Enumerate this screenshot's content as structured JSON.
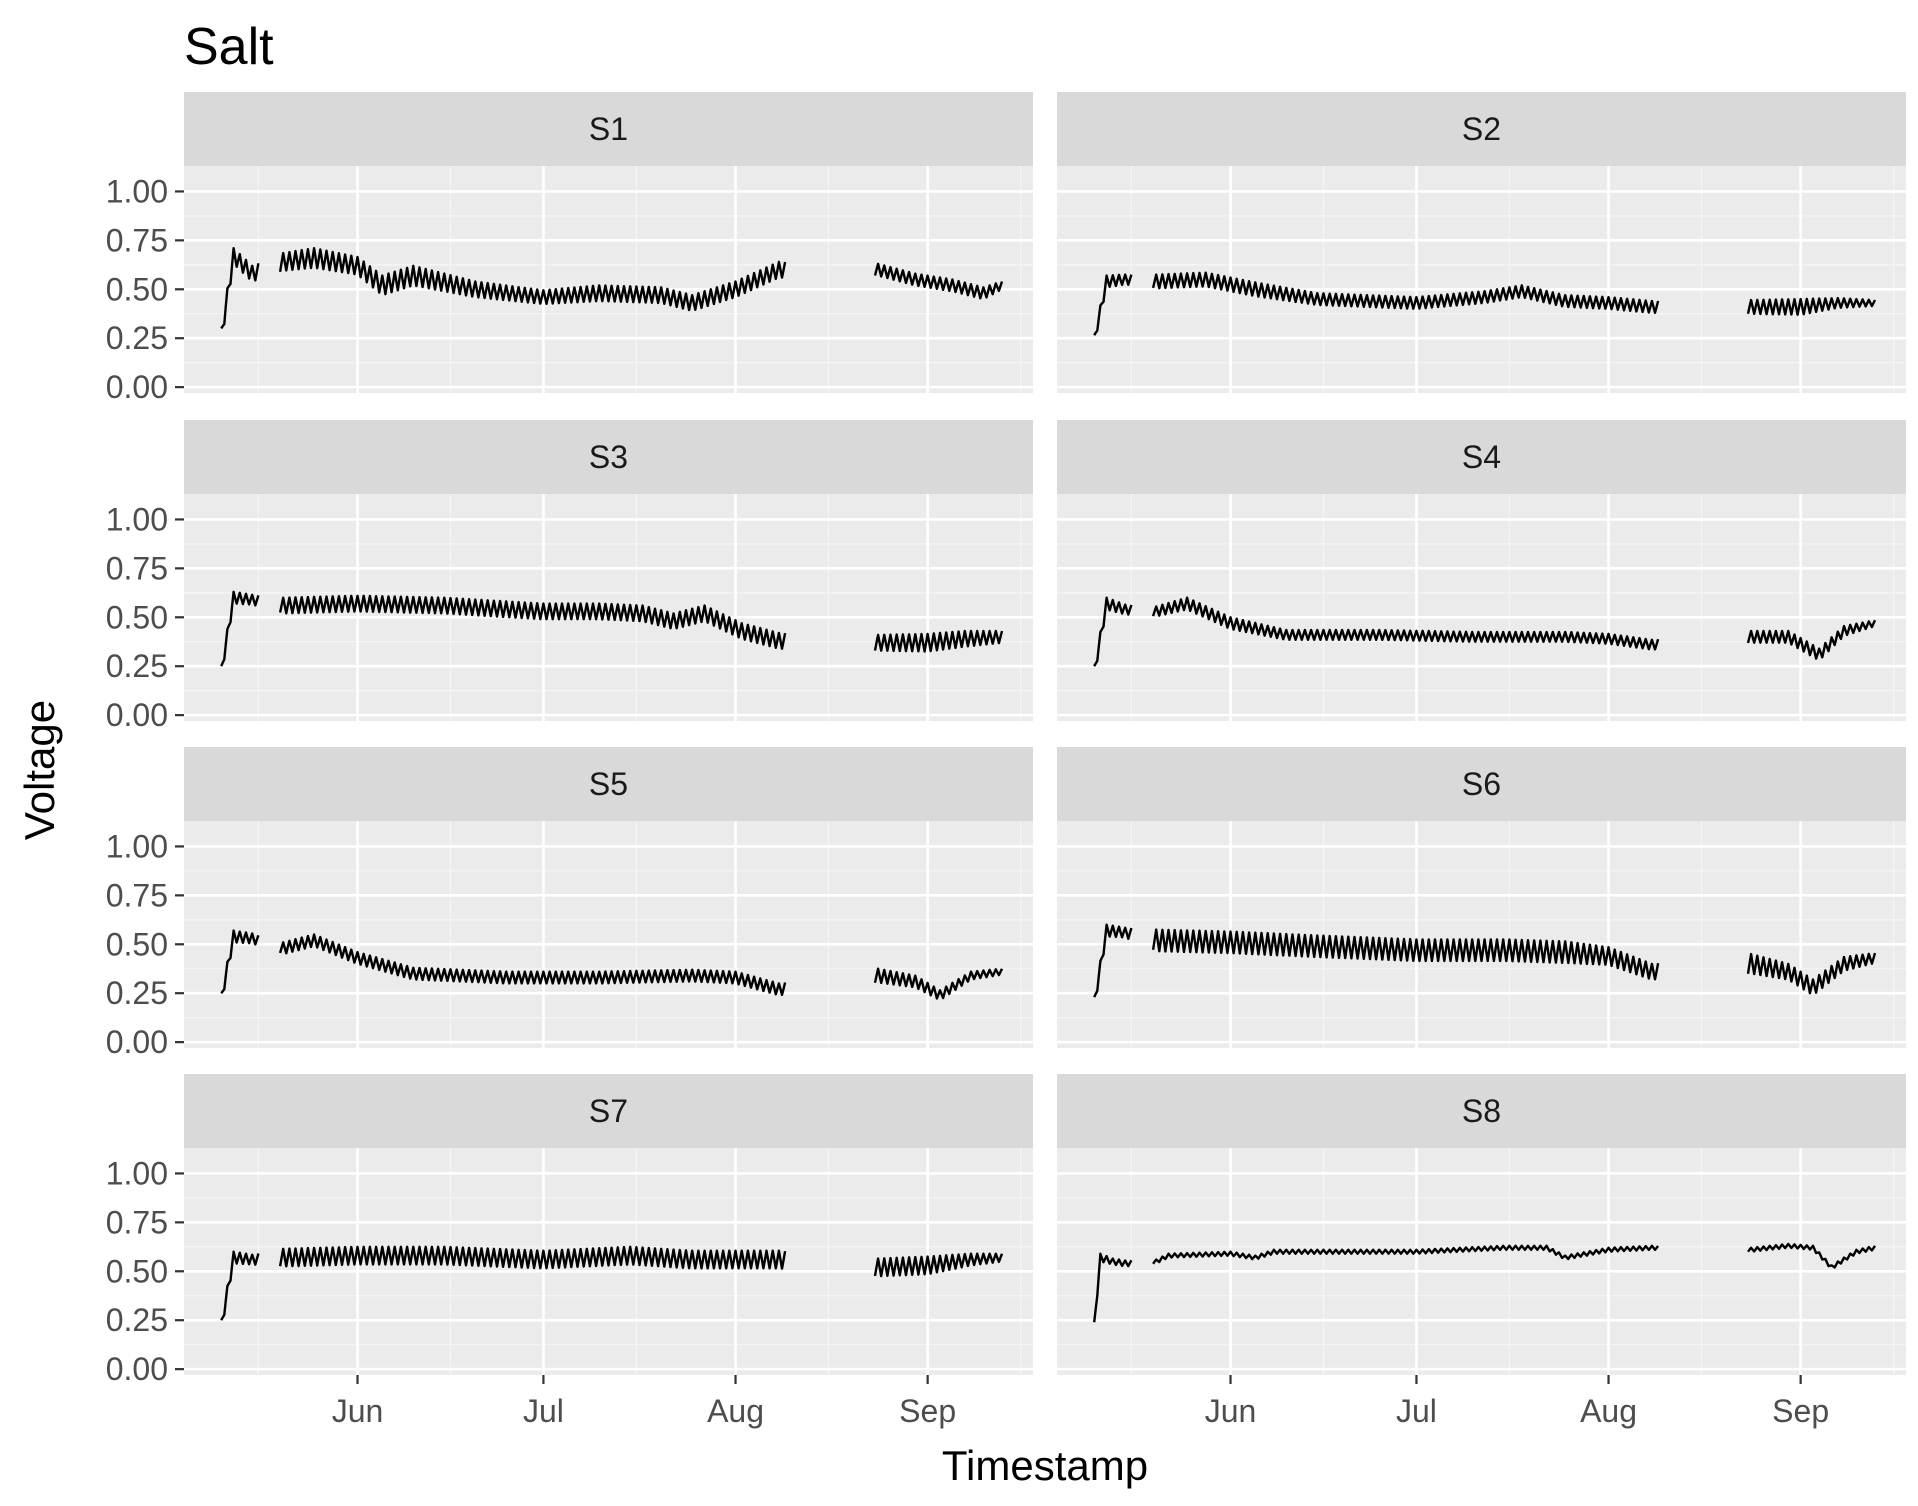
{
  "chart_data": {
    "type": "line",
    "title": "Salt",
    "xlabel": "Timestamp",
    "ylabel": "Voltage",
    "ylim": [
      0,
      1
    ],
    "xlim": [
      "2023-05-04",
      "2023-09-18"
    ],
    "y_ticks": [
      "0.00",
      "0.25",
      "0.50",
      "0.75",
      "1.00"
    ],
    "x_ticks": [
      {
        "label": "Jun",
        "date": "2023-06-01"
      },
      {
        "label": "Jul",
        "date": "2023-07-01"
      },
      {
        "label": "Aug",
        "date": "2023-08-01"
      },
      {
        "label": "Sep",
        "date": "2023-09-01"
      }
    ],
    "grid": true,
    "legend": "none",
    "line_color": "#000000",
    "panel_background": "#ebebeb",
    "strip_background": "#d9d9d9",
    "facets": [
      {
        "name": "S1",
        "gaps": [
          "2023-05-16",
          "2023-08-09"
        ],
        "x": [
          "2023-05-10",
          "2023-05-12",
          "2023-05-15",
          "2023-05-20",
          "2023-05-25",
          "2023-06-01",
          "2023-06-05",
          "2023-06-10",
          "2023-06-20",
          "2023-07-01",
          "2023-07-10",
          "2023-07-20",
          "2023-07-25",
          "2023-08-01",
          "2023-08-08",
          "2023-08-24",
          "2023-08-30",
          "2023-09-05",
          "2023-09-10",
          "2023-09-13"
        ],
        "y": [
          0.26,
          0.67,
          0.58,
          0.64,
          0.66,
          0.62,
          0.52,
          0.57,
          0.5,
          0.46,
          0.48,
          0.47,
          0.43,
          0.5,
          0.6,
          0.6,
          0.55,
          0.52,
          0.48,
          0.52
        ],
        "range": [
          0.08,
          0.08,
          0.08,
          0.09,
          0.1,
          0.09,
          0.1,
          0.1,
          0.08,
          0.07,
          0.08,
          0.08,
          0.08,
          0.08,
          0.08,
          0.06,
          0.06,
          0.06,
          0.06,
          0.04
        ]
      },
      {
        "name": "S2",
        "gaps": [
          "2023-05-16",
          "2023-08-09"
        ],
        "x": [
          "2023-05-10",
          "2023-05-12",
          "2023-05-15",
          "2023-05-20",
          "2023-05-28",
          "2023-06-05",
          "2023-06-15",
          "2023-07-01",
          "2023-07-12",
          "2023-07-18",
          "2023-07-25",
          "2023-08-01",
          "2023-08-08",
          "2023-08-24",
          "2023-09-01",
          "2023-09-07",
          "2023-09-13"
        ],
        "y": [
          0.24,
          0.54,
          0.55,
          0.54,
          0.55,
          0.5,
          0.45,
          0.43,
          0.46,
          0.49,
          0.44,
          0.43,
          0.41,
          0.41,
          0.41,
          0.43,
          0.43
        ],
        "range": [
          0.05,
          0.06,
          0.05,
          0.07,
          0.07,
          0.07,
          0.06,
          0.06,
          0.06,
          0.06,
          0.06,
          0.06,
          0.06,
          0.07,
          0.08,
          0.05,
          0.03
        ]
      },
      {
        "name": "S3",
        "gaps": [
          "2023-05-16",
          "2023-08-09"
        ],
        "x": [
          "2023-05-10",
          "2023-05-12",
          "2023-05-15",
          "2023-05-20",
          "2023-06-01",
          "2023-06-15",
          "2023-07-01",
          "2023-07-10",
          "2023-07-17",
          "2023-07-22",
          "2023-07-27",
          "2023-08-02",
          "2023-08-08",
          "2023-08-24",
          "2023-09-01",
          "2023-09-07",
          "2023-09-13"
        ],
        "y": [
          0.22,
          0.6,
          0.59,
          0.56,
          0.57,
          0.56,
          0.53,
          0.53,
          0.52,
          0.48,
          0.52,
          0.43,
          0.38,
          0.37,
          0.37,
          0.39,
          0.4
        ],
        "range": [
          0.06,
          0.06,
          0.05,
          0.08,
          0.08,
          0.08,
          0.08,
          0.08,
          0.08,
          0.08,
          0.08,
          0.08,
          0.08,
          0.08,
          0.09,
          0.08,
          0.06
        ]
      },
      {
        "name": "S4",
        "gaps": [
          "2023-05-16",
          "2023-08-09"
        ],
        "x": [
          "2023-05-10",
          "2023-05-12",
          "2023-05-15",
          "2023-05-20",
          "2023-05-25",
          "2023-06-01",
          "2023-06-10",
          "2023-06-25",
          "2023-07-10",
          "2023-07-25",
          "2023-08-01",
          "2023-08-08",
          "2023-08-24",
          "2023-08-30",
          "2023-09-04",
          "2023-09-08",
          "2023-09-13"
        ],
        "y": [
          0.22,
          0.57,
          0.54,
          0.53,
          0.57,
          0.47,
          0.41,
          0.41,
          0.4,
          0.4,
          0.39,
          0.36,
          0.4,
          0.4,
          0.31,
          0.43,
          0.47
        ],
        "range": [
          0.06,
          0.06,
          0.05,
          0.05,
          0.06,
          0.06,
          0.05,
          0.05,
          0.05,
          0.05,
          0.05,
          0.05,
          0.06,
          0.06,
          0.06,
          0.05,
          0.03
        ]
      },
      {
        "name": "S5",
        "gaps": [
          "2023-05-16",
          "2023-08-09"
        ],
        "x": [
          "2023-05-10",
          "2023-05-12",
          "2023-05-15",
          "2023-05-20",
          "2023-05-25",
          "2023-06-01",
          "2023-06-10",
          "2023-06-25",
          "2023-07-10",
          "2023-07-25",
          "2023-08-01",
          "2023-08-08",
          "2023-08-24",
          "2023-08-30",
          "2023-09-03",
          "2023-09-08",
          "2023-09-13"
        ],
        "y": [
          0.22,
          0.54,
          0.53,
          0.48,
          0.52,
          0.43,
          0.35,
          0.33,
          0.33,
          0.34,
          0.33,
          0.27,
          0.34,
          0.31,
          0.24,
          0.34,
          0.36
        ],
        "range": [
          0.06,
          0.06,
          0.05,
          0.06,
          0.06,
          0.06,
          0.06,
          0.06,
          0.06,
          0.06,
          0.06,
          0.06,
          0.07,
          0.06,
          0.05,
          0.04,
          0.03
        ]
      },
      {
        "name": "S6",
        "gaps": [
          "2023-05-16",
          "2023-08-09"
        ],
        "x": [
          "2023-05-10",
          "2023-05-12",
          "2023-05-15",
          "2023-05-20",
          "2023-06-01",
          "2023-06-15",
          "2023-07-01",
          "2023-07-15",
          "2023-07-25",
          "2023-08-01",
          "2023-08-08",
          "2023-08-24",
          "2023-08-30",
          "2023-09-03",
          "2023-09-08",
          "2023-09-13"
        ],
        "y": [
          0.2,
          0.57,
          0.56,
          0.52,
          0.51,
          0.49,
          0.47,
          0.47,
          0.46,
          0.44,
          0.36,
          0.4,
          0.36,
          0.28,
          0.4,
          0.43
        ],
        "range": [
          0.06,
          0.06,
          0.05,
          0.11,
          0.11,
          0.11,
          0.11,
          0.11,
          0.11,
          0.09,
          0.08,
          0.1,
          0.08,
          0.08,
          0.07,
          0.05
        ]
      },
      {
        "name": "S7",
        "gaps": [
          "2023-05-16",
          "2023-08-09"
        ],
        "x": [
          "2023-05-10",
          "2023-05-12",
          "2023-05-15",
          "2023-05-20",
          "2023-06-01",
          "2023-06-15",
          "2023-07-01",
          "2023-07-15",
          "2023-07-25",
          "2023-08-01",
          "2023-08-08",
          "2023-08-24",
          "2023-09-01",
          "2023-09-08",
          "2023-09-13"
        ],
        "y": [
          0.22,
          0.57,
          0.56,
          0.57,
          0.58,
          0.58,
          0.56,
          0.58,
          0.56,
          0.56,
          0.56,
          0.52,
          0.53,
          0.56,
          0.57
        ],
        "range": [
          0.06,
          0.06,
          0.05,
          0.09,
          0.09,
          0.09,
          0.09,
          0.09,
          0.09,
          0.09,
          0.09,
          0.09,
          0.09,
          0.06,
          0.04
        ]
      },
      {
        "name": "S8",
        "gaps": [
          "2023-05-16",
          "2023-08-09"
        ],
        "x": [
          "2023-05-10",
          "2023-05-11",
          "2023-05-13",
          "2023-05-15",
          "2023-05-20",
          "2023-05-22",
          "2023-06-01",
          "2023-06-05",
          "2023-06-08",
          "2023-06-20",
          "2023-07-01",
          "2023-07-15",
          "2023-07-22",
          "2023-07-25",
          "2023-08-01",
          "2023-08-08",
          "2023-08-24",
          "2023-08-30",
          "2023-09-03",
          "2023-09-06",
          "2023-09-10",
          "2023-09-13"
        ],
        "y": [
          0.22,
          0.57,
          0.55,
          0.54,
          0.55,
          0.58,
          0.59,
          0.57,
          0.6,
          0.6,
          0.6,
          0.62,
          0.62,
          0.57,
          0.61,
          0.62,
          0.61,
          0.63,
          0.62,
          0.52,
          0.6,
          0.62
        ],
        "range": [
          0.04,
          0.04,
          0.03,
          0.03,
          0.02,
          0.02,
          0.02,
          0.02,
          0.02,
          0.02,
          0.02,
          0.02,
          0.02,
          0.02,
          0.02,
          0.02,
          0.02,
          0.02,
          0.02,
          0.02,
          0.02,
          0.02
        ]
      }
    ]
  }
}
